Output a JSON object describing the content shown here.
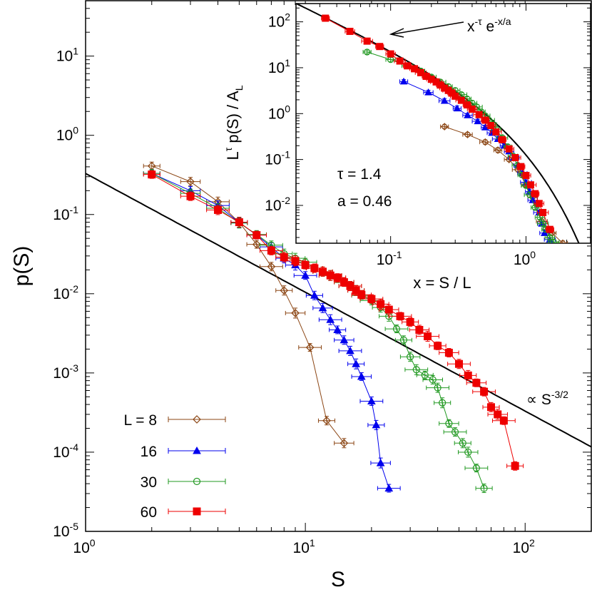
{
  "chart_data": [
    {
      "type": "scatter",
      "xlabel": "S",
      "ylabel": "p(S)",
      "xscale": "log",
      "yscale": "log",
      "xlim": [
        1,
        200
      ],
      "ylim": [
        1e-05,
        50
      ],
      "x_ticks": [
        {
          "base": "10",
          "exp": "0",
          "v": 1
        },
        {
          "base": "10",
          "exp": "1",
          "v": 10
        },
        {
          "base": "10",
          "exp": "2",
          "v": 100
        }
      ],
      "y_ticks": [
        {
          "base": "10",
          "exp": "1",
          "v": 10
        },
        {
          "base": "10",
          "exp": "0",
          "v": 1
        },
        {
          "base": "10",
          "exp": "-1",
          "v": 0.1
        },
        {
          "base": "10",
          "exp": "-2",
          "v": 0.01
        },
        {
          "base": "10",
          "exp": "-3",
          "v": 0.001
        },
        {
          "base": "10",
          "exp": "-4",
          "v": 0.0001
        },
        {
          "base": "10",
          "exp": "-5",
          "v": 1e-05
        }
      ],
      "legend_position": "bottom-left",
      "legend_prefix": "L =",
      "annotation": {
        "text": "∝ S",
        "sup": "-3/2"
      },
      "power_law": {
        "exponent": -1.5,
        "amplitude": 0.33
      },
      "series": [
        {
          "name": "8",
          "color": "#8B4513",
          "marker": "diamond",
          "x": [
            2,
            3,
            4,
            5,
            6,
            7,
            8,
            9,
            10.5,
            12.5,
            15
          ],
          "y": [
            0.41,
            0.26,
            0.145,
            0.079,
            0.042,
            0.022,
            0.011,
            0.0057,
            0.0021,
            0.00025,
            0.00013
          ]
        },
        {
          "name": "16",
          "color": "#0000EE",
          "marker": "triangle",
          "x": [
            2,
            3,
            4,
            5,
            6,
            7,
            8,
            9,
            10,
            11,
            12,
            13,
            14,
            15,
            16,
            17,
            18,
            20,
            21,
            22,
            24
          ],
          "y": [
            0.33,
            0.2,
            0.13,
            0.079,
            0.055,
            0.039,
            0.028,
            0.023,
            0.017,
            0.0095,
            0.0066,
            0.0047,
            0.0035,
            0.0026,
            0.0019,
            0.0013,
            0.0009,
            0.00044,
            0.00022,
            7.3e-05,
            3.5e-05
          ]
        },
        {
          "name": "30",
          "color": "#229922",
          "marker": "circle",
          "x": [
            2,
            3,
            4,
            5,
            6,
            7,
            8,
            9,
            10,
            11,
            12,
            13,
            14,
            15,
            16,
            17,
            18,
            20,
            22,
            24,
            26,
            28,
            30,
            32,
            35,
            38,
            40,
            42,
            45,
            48,
            52,
            55,
            60,
            65
          ],
          "y": [
            0.33,
            0.185,
            0.12,
            0.078,
            0.056,
            0.041,
            0.032,
            0.028,
            0.025,
            0.021,
            0.019,
            0.017,
            0.0155,
            0.014,
            0.0125,
            0.011,
            0.0095,
            0.0082,
            0.0067,
            0.0052,
            0.0036,
            0.0026,
            0.0016,
            0.0011,
            0.00094,
            0.00082,
            0.00065,
            0.00042,
            0.00023,
            0.00018,
            0.00013,
            0.0001,
            6.3e-05,
            3.5e-05
          ]
        },
        {
          "name": "60",
          "color": "#EE0000",
          "marker": "square",
          "x": [
            2,
            3,
            4,
            5,
            6,
            7,
            8,
            9,
            10,
            11,
            12,
            13,
            14,
            15,
            16,
            17,
            18,
            20,
            22,
            24,
            27,
            30,
            33,
            36,
            40,
            45,
            50,
            55,
            60,
            65,
            70,
            75,
            80,
            90
          ],
          "y": [
            0.32,
            0.17,
            0.114,
            0.08,
            0.055,
            0.035,
            0.029,
            0.026,
            0.023,
            0.021,
            0.019,
            0.017,
            0.016,
            0.014,
            0.0125,
            0.011,
            0.0097,
            0.0086,
            0.0074,
            0.0063,
            0.0052,
            0.0044,
            0.0035,
            0.0029,
            0.0022,
            0.0018,
            0.0013,
            0.00093,
            0.00075,
            0.00058,
            0.00037,
            0.0003,
            0.00025,
            6.7e-05
          ]
        }
      ]
    },
    {
      "type": "scatter",
      "xlabel": "x = S / L",
      "ylabel": {
        "base": "L",
        "sup1": "τ",
        "rest": " p(S) / A",
        "sub": "L"
      },
      "xscale": "log",
      "yscale": "log",
      "xlim": [
        0.02,
        3
      ],
      "ylim": [
        0.0015,
        250
      ],
      "x_ticks": [
        {
          "base": "10",
          "exp": "-1",
          "v": 0.1
        },
        {
          "base": "10",
          "exp": "0",
          "v": 1
        }
      ],
      "y_ticks": [
        {
          "base": "10",
          "exp": "2",
          "v": 100
        },
        {
          "base": "10",
          "exp": "1",
          "v": 10
        },
        {
          "base": "10",
          "exp": "0",
          "v": 1
        },
        {
          "base": "10",
          "exp": "-1",
          "v": 0.1
        },
        {
          "base": "10",
          "exp": "-2",
          "v": 0.01
        }
      ],
      "fit_label": {
        "base1": "x",
        "sup1": "-τ",
        "base2": " e",
        "sup2": "-x/a"
      },
      "fit": {
        "tau": 1.4,
        "a": 0.46,
        "amplitude": 1.1
      },
      "params": [
        "τ = 1.4",
        "a = 0.46"
      ],
      "series": [
        {
          "name": "8",
          "color": "#8B4513",
          "marker": "diamond",
          "x": [
            0.25,
            0.37,
            0.5,
            0.62,
            0.75,
            0.87,
            1.0,
            1.12,
            1.31,
            1.56,
            1.87
          ],
          "y": [
            0.52,
            0.35,
            0.24,
            0.16,
            0.1,
            0.06,
            0.028,
            0.015,
            0.0045,
            0.0025,
            0.0015
          ]
        },
        {
          "name": "16",
          "color": "#0000EE",
          "marker": "triangle",
          "x": [
            0.125,
            0.19,
            0.25,
            0.31,
            0.37,
            0.44,
            0.5,
            0.56,
            0.62,
            0.69,
            0.75,
            0.81,
            0.87,
            0.94,
            1.0,
            1.06,
            1.12,
            1.25,
            1.31,
            1.37,
            1.5,
            1.62,
            1.87,
            2.0
          ],
          "y": [
            5.0,
            2.9,
            1.9,
            1.3,
            0.92,
            0.68,
            0.5,
            0.38,
            0.28,
            0.2,
            0.15,
            0.11,
            0.075,
            0.05,
            0.032,
            0.02,
            0.013,
            0.007,
            0.004,
            0.0025,
            0.0018,
            0.0012,
            0.0011,
            0.001
          ]
        },
        {
          "name": "30",
          "color": "#229922",
          "marker": "circle",
          "x": [
            0.067,
            0.1,
            0.133,
            0.167,
            0.2,
            0.233,
            0.267,
            0.3,
            0.333,
            0.367,
            0.4,
            0.433,
            0.467,
            0.5,
            0.533,
            0.567,
            0.6,
            0.667,
            0.733,
            0.8,
            0.867,
            0.933,
            1.0,
            1.067,
            1.167,
            1.267,
            1.333,
            1.4,
            1.5,
            1.6,
            1.733,
            1.833,
            2.0
          ],
          "y": [
            22,
            15,
            11,
            8.5,
            6.3,
            4.9,
            3.9,
            3.2,
            2.6,
            2.1,
            1.7,
            1.4,
            1.1,
            0.9,
            0.72,
            0.58,
            0.46,
            0.3,
            0.19,
            0.12,
            0.075,
            0.046,
            0.027,
            0.017,
            0.009,
            0.0055,
            0.004,
            0.003,
            0.002,
            0.0016,
            0.0013,
            0.001,
            0.0009
          ]
        },
        {
          "name": "60",
          "color": "#EE0000",
          "marker": "square",
          "x": [
            0.033,
            0.05,
            0.067,
            0.083,
            0.1,
            0.117,
            0.133,
            0.15,
            0.167,
            0.183,
            0.2,
            0.217,
            0.233,
            0.25,
            0.267,
            0.283,
            0.3,
            0.333,
            0.367,
            0.4,
            0.45,
            0.5,
            0.55,
            0.6,
            0.667,
            0.75,
            0.833,
            0.917,
            1.0,
            1.083,
            1.167,
            1.25,
            1.333,
            1.5
          ],
          "y": [
            120,
            62,
            38,
            29,
            20,
            14,
            11,
            9.5,
            7.8,
            6.5,
            5.6,
            4.9,
            4.2,
            3.6,
            3.2,
            2.8,
            2.4,
            1.95,
            1.55,
            1.25,
            0.95,
            0.72,
            0.55,
            0.4,
            0.27,
            0.17,
            0.11,
            0.07,
            0.045,
            0.028,
            0.018,
            0.011,
            0.007,
            0.003
          ]
        }
      ]
    }
  ]
}
